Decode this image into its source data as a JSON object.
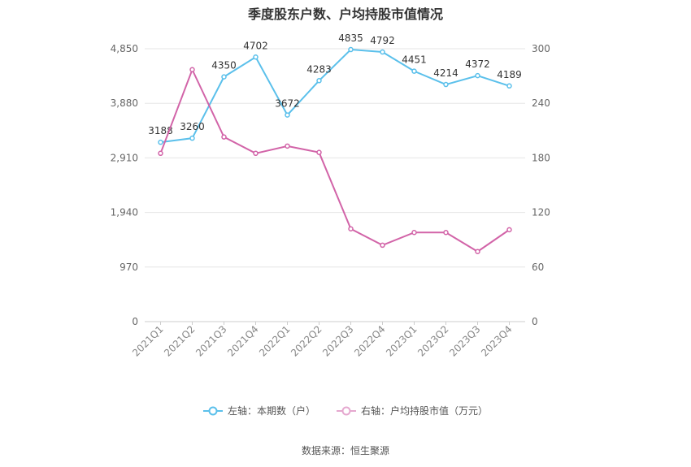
{
  "chart_data": {
    "type": "line",
    "title": "季度股东户数、户均持股市值情况",
    "categories": [
      "2021Q1",
      "2021Q2",
      "2021Q3",
      "2021Q4",
      "2022Q1",
      "2022Q2",
      "2022Q3",
      "2022Q4",
      "2023Q1",
      "2023Q2",
      "2023Q3",
      "2023Q4"
    ],
    "series": [
      {
        "name": "左轴：本期数（户）",
        "axis": "left",
        "color": "#5bc0eb",
        "values": [
          3188,
          3260,
          4350,
          4702,
          3672,
          4283,
          4835,
          4792,
          4451,
          4214,
          4372,
          4189
        ],
        "labels_shown": true
      },
      {
        "name": "右轴：户均持股市值（万元）",
        "axis": "right",
        "color": "#d264a8",
        "values": [
          185,
          277,
          203,
          185,
          193,
          186,
          102,
          84,
          98,
          98,
          77,
          101
        ],
        "labels_shown": false
      }
    ],
    "y_left": {
      "ylim": [
        0,
        4850
      ],
      "ticks": [
        "0",
        "970",
        "1,940",
        "2,910",
        "3,880",
        "4,850"
      ]
    },
    "y_right": {
      "ylim": [
        0,
        300
      ],
      "ticks": [
        "0",
        "60",
        "120",
        "180",
        "240",
        "300"
      ]
    },
    "grid": true,
    "legend_position": "bottom"
  },
  "source_text": "数据来源：恒生聚源"
}
